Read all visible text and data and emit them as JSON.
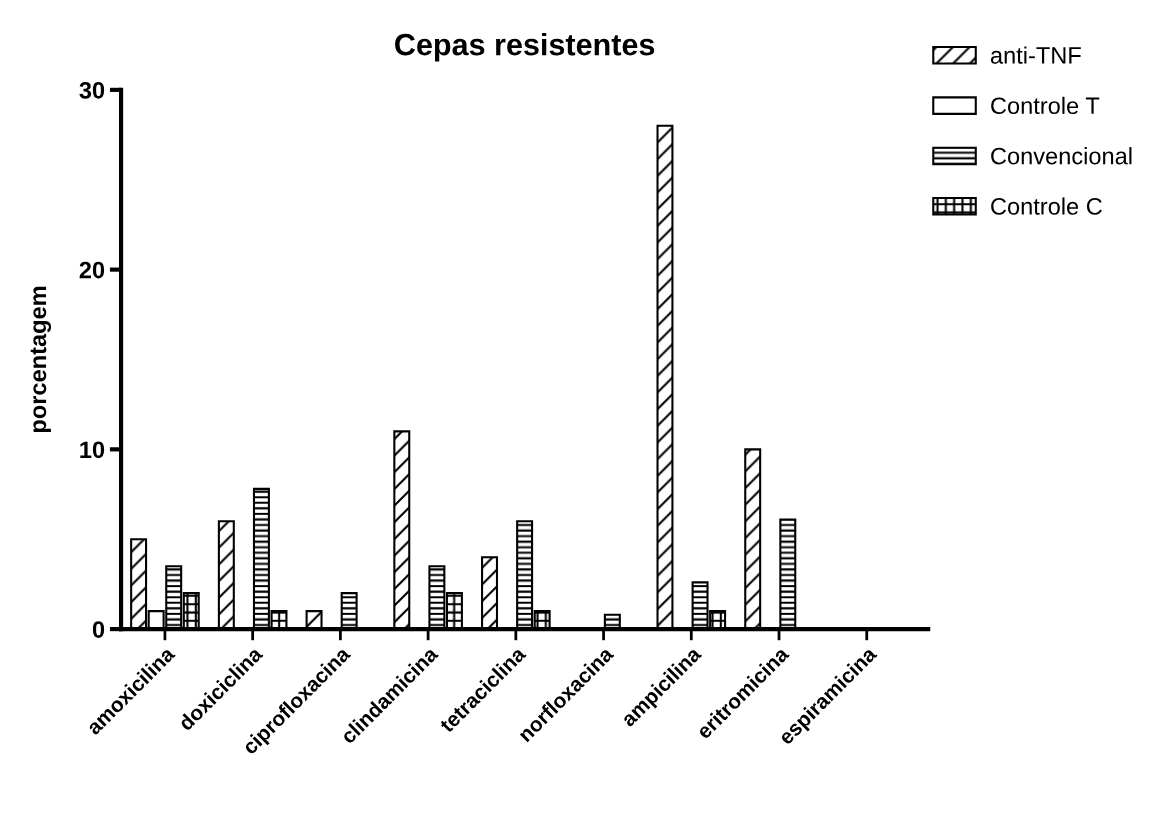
{
  "chart_data": {
    "type": "bar",
    "title": "Cepas resistentes",
    "ylabel": "porcentagem",
    "categories": [
      "amoxicilina",
      "doxiciclina",
      "ciprofloxacina",
      "clindamicina",
      "tetraciclina",
      "norfloxacina",
      "ampicilina",
      "eritromicina",
      "espiramicina"
    ],
    "series": [
      {
        "name": "anti-TNF",
        "color": "#000000",
        "values": [
          5,
          6,
          1,
          11,
          4,
          0,
          28,
          10,
          0
        ]
      },
      {
        "name": "Controle T",
        "color": "#000000",
        "values": [
          1,
          0,
          0,
          0,
          0,
          0,
          0,
          0,
          0
        ]
      },
      {
        "name": "Convencional",
        "color": "#000000",
        "values": [
          3.5,
          7.8,
          2,
          3.5,
          6,
          0.8,
          2.6,
          6.1,
          0
        ]
      },
      {
        "name": "Controle C",
        "color": "#000000",
        "values": [
          2,
          1,
          0,
          2,
          1,
          0,
          1,
          0,
          0
        ]
      }
    ],
    "ylim": [
      0,
      30
    ],
    "yticks": [
      0,
      10,
      20,
      30
    ],
    "grid": false,
    "legend": "top right"
  }
}
